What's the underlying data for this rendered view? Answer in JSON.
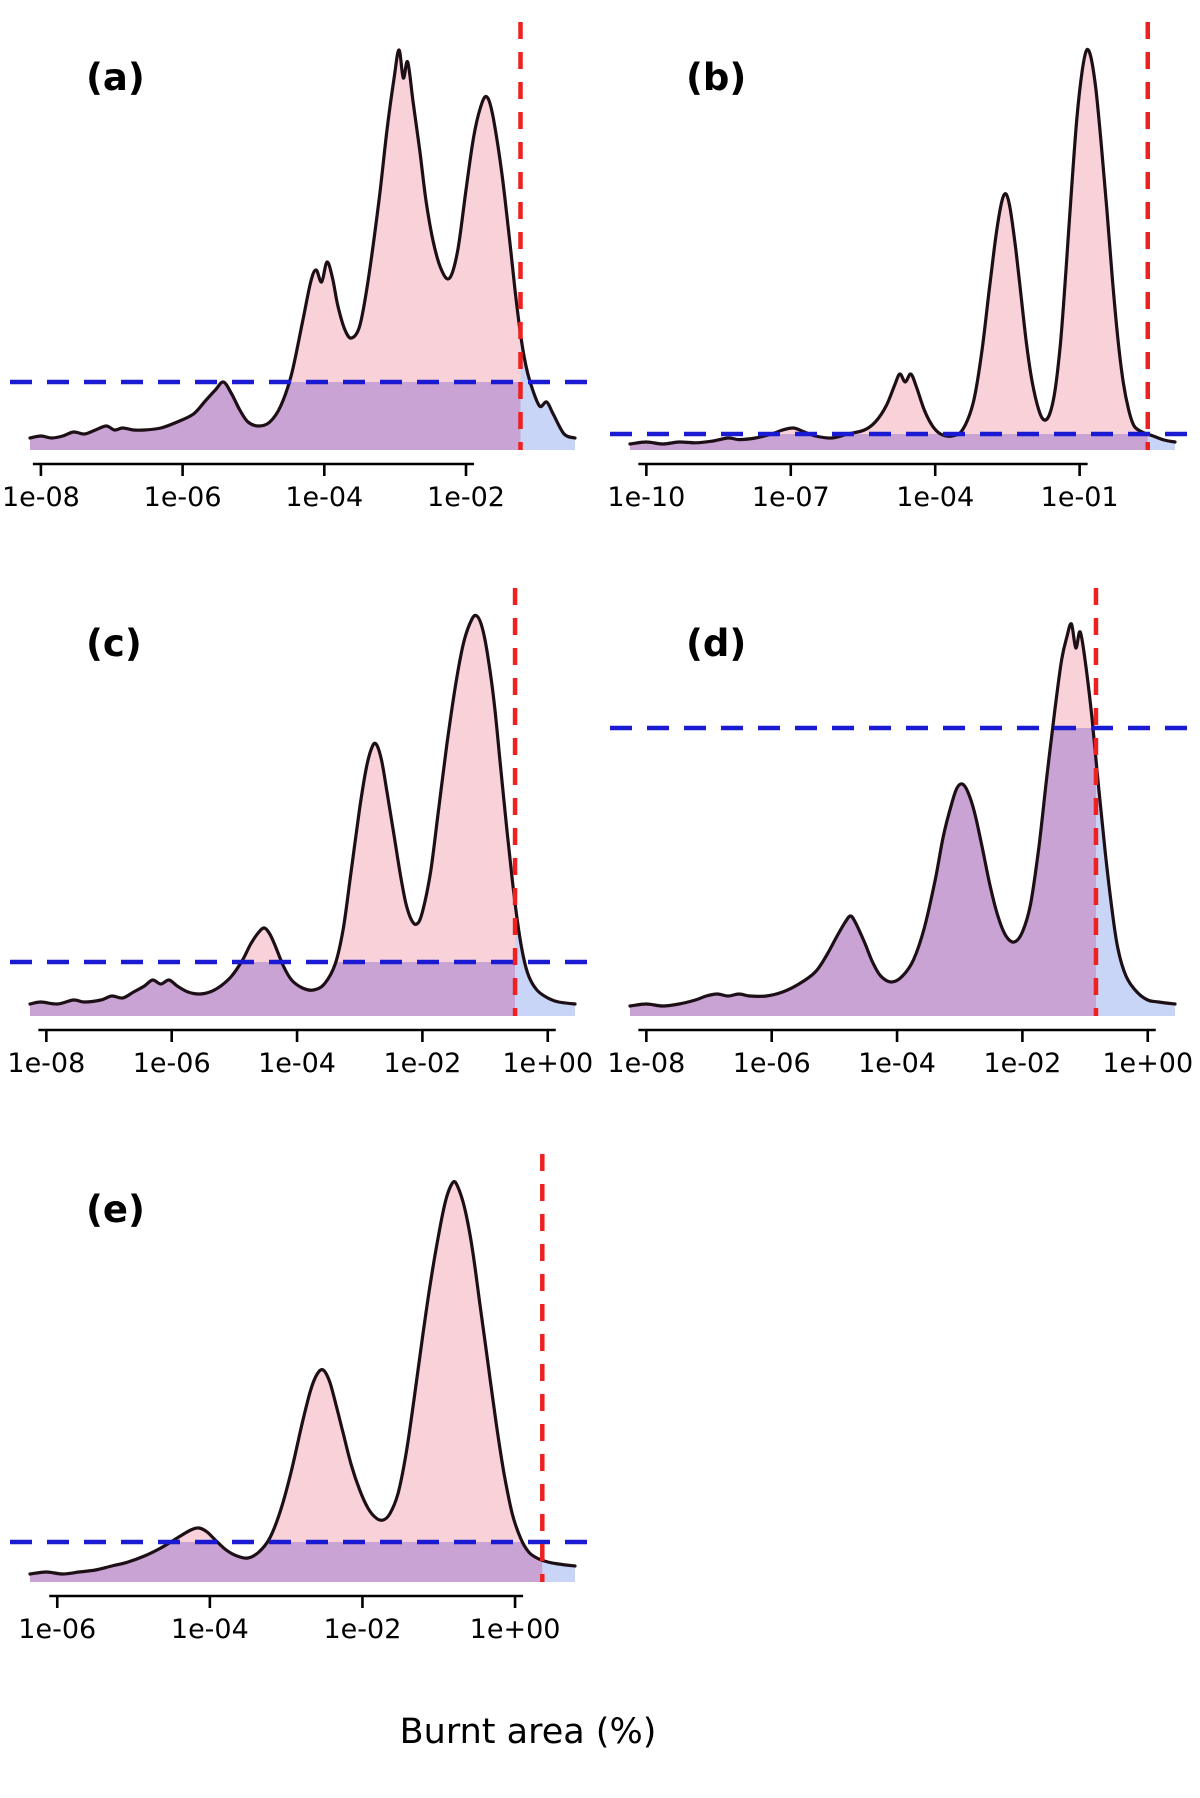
{
  "figure": {
    "xlabel": "Burnt area (%)",
    "colors": {
      "fill_pink": "#f9d2d9",
      "fill_overlap_purple": "#c9a3d3",
      "fill_beyond_blue": "#c8d5f7",
      "curve": "#1d0f16",
      "blue_line": "#1a1ad2",
      "red_line": "#ee2020",
      "axis": "#000000"
    }
  },
  "chart_data": [
    {
      "panel": "(a)",
      "type": "area",
      "x_scale": "log10",
      "x_ticks": [
        {
          "pos": 0.02,
          "label": "1e-08"
        },
        {
          "pos": 0.28,
          "label": "1e-06"
        },
        {
          "pos": 0.54,
          "label": "1e-04"
        },
        {
          "pos": 0.8,
          "label": "1e-02"
        }
      ],
      "blue_hline_frac": 0.17,
      "red_vline_frac": 0.9,
      "red_vline_value_pct": "~0.06",
      "curve_points": [
        [
          0,
          0.03
        ],
        [
          0.02,
          0.035
        ],
        [
          0.04,
          0.03
        ],
        [
          0.06,
          0.035
        ],
        [
          0.08,
          0.045
        ],
        [
          0.1,
          0.04
        ],
        [
          0.12,
          0.05
        ],
        [
          0.14,
          0.06
        ],
        [
          0.155,
          0.05
        ],
        [
          0.17,
          0.055
        ],
        [
          0.19,
          0.05
        ],
        [
          0.21,
          0.05
        ],
        [
          0.24,
          0.055
        ],
        [
          0.27,
          0.07
        ],
        [
          0.3,
          0.09
        ],
        [
          0.32,
          0.12
        ],
        [
          0.34,
          0.15
        ],
        [
          0.355,
          0.17
        ],
        [
          0.37,
          0.14
        ],
        [
          0.385,
          0.1
        ],
        [
          0.4,
          0.07
        ],
        [
          0.42,
          0.06
        ],
        [
          0.44,
          0.07
        ],
        [
          0.46,
          0.11
        ],
        [
          0.48,
          0.19
        ],
        [
          0.5,
          0.32
        ],
        [
          0.515,
          0.42
        ],
        [
          0.525,
          0.45
        ],
        [
          0.535,
          0.42
        ],
        [
          0.545,
          0.47
        ],
        [
          0.555,
          0.43
        ],
        [
          0.565,
          0.36
        ],
        [
          0.578,
          0.3
        ],
        [
          0.59,
          0.28
        ],
        [
          0.605,
          0.31
        ],
        [
          0.62,
          0.42
        ],
        [
          0.64,
          0.62
        ],
        [
          0.655,
          0.8
        ],
        [
          0.668,
          0.93
        ],
        [
          0.677,
          1.0
        ],
        [
          0.685,
          0.93
        ],
        [
          0.693,
          0.97
        ],
        [
          0.703,
          0.87
        ],
        [
          0.715,
          0.75
        ],
        [
          0.727,
          0.62
        ],
        [
          0.74,
          0.52
        ],
        [
          0.755,
          0.45
        ],
        [
          0.77,
          0.43
        ],
        [
          0.785,
          0.5
        ],
        [
          0.8,
          0.65
        ],
        [
          0.815,
          0.79
        ],
        [
          0.83,
          0.87
        ],
        [
          0.84,
          0.88
        ],
        [
          0.85,
          0.83
        ],
        [
          0.865,
          0.7
        ],
        [
          0.878,
          0.55
        ],
        [
          0.89,
          0.4
        ],
        [
          0.9,
          0.29
        ],
        [
          0.91,
          0.21
        ],
        [
          0.92,
          0.16
        ],
        [
          0.935,
          0.11
        ],
        [
          0.948,
          0.12
        ],
        [
          0.96,
          0.09
        ],
        [
          0.98,
          0.04
        ],
        [
          1,
          0.03
        ]
      ]
    },
    {
      "panel": "(b)",
      "type": "area",
      "x_scale": "log10",
      "x_ticks": [
        {
          "pos": 0.03,
          "label": "1e-10"
        },
        {
          "pos": 0.295,
          "label": "1e-07"
        },
        {
          "pos": 0.56,
          "label": "1e-04"
        },
        {
          "pos": 0.825,
          "label": "1e-01"
        }
      ],
      "blue_hline_frac": 0.04,
      "red_vline_frac": 0.95,
      "red_vline_value_pct": "~2.5",
      "curve_points": [
        [
          0,
          0.015
        ],
        [
          0.03,
          0.02
        ],
        [
          0.06,
          0.015
        ],
        [
          0.09,
          0.02
        ],
        [
          0.12,
          0.018
        ],
        [
          0.15,
          0.022
        ],
        [
          0.18,
          0.03
        ],
        [
          0.2,
          0.026
        ],
        [
          0.23,
          0.03
        ],
        [
          0.26,
          0.04
        ],
        [
          0.28,
          0.05
        ],
        [
          0.3,
          0.055
        ],
        [
          0.32,
          0.045
        ],
        [
          0.34,
          0.035
        ],
        [
          0.37,
          0.03
        ],
        [
          0.4,
          0.04
        ],
        [
          0.43,
          0.05
        ],
        [
          0.45,
          0.07
        ],
        [
          0.47,
          0.11
        ],
        [
          0.485,
          0.16
        ],
        [
          0.495,
          0.19
        ],
        [
          0.505,
          0.17
        ],
        [
          0.515,
          0.19
        ],
        [
          0.525,
          0.16
        ],
        [
          0.54,
          0.1
        ],
        [
          0.555,
          0.06
        ],
        [
          0.57,
          0.04
        ],
        [
          0.59,
          0.035
        ],
        [
          0.61,
          0.05
        ],
        [
          0.63,
          0.12
        ],
        [
          0.645,
          0.24
        ],
        [
          0.66,
          0.41
        ],
        [
          0.672,
          0.54
        ],
        [
          0.682,
          0.62
        ],
        [
          0.69,
          0.64
        ],
        [
          0.698,
          0.6
        ],
        [
          0.708,
          0.5
        ],
        [
          0.718,
          0.38
        ],
        [
          0.728,
          0.26
        ],
        [
          0.738,
          0.17
        ],
        [
          0.75,
          0.1
        ],
        [
          0.76,
          0.075
        ],
        [
          0.77,
          0.09
        ],
        [
          0.78,
          0.15
        ],
        [
          0.79,
          0.27
        ],
        [
          0.8,
          0.45
        ],
        [
          0.81,
          0.65
        ],
        [
          0.82,
          0.83
        ],
        [
          0.83,
          0.95
        ],
        [
          0.838,
          1.0
        ],
        [
          0.846,
          0.98
        ],
        [
          0.855,
          0.9
        ],
        [
          0.865,
          0.76
        ],
        [
          0.875,
          0.6
        ],
        [
          0.885,
          0.43
        ],
        [
          0.895,
          0.28
        ],
        [
          0.905,
          0.17
        ],
        [
          0.915,
          0.1
        ],
        [
          0.925,
          0.06
        ],
        [
          0.94,
          0.045
        ],
        [
          0.96,
          0.035
        ],
        [
          0.98,
          0.025
        ],
        [
          1,
          0.02
        ]
      ]
    },
    {
      "panel": "(c)",
      "type": "area",
      "x_scale": "log10",
      "x_ticks": [
        {
          "pos": 0.03,
          "label": "1e-08"
        },
        {
          "pos": 0.26,
          "label": "1e-06"
        },
        {
          "pos": 0.49,
          "label": "1e-04"
        },
        {
          "pos": 0.72,
          "label": "1e-02"
        },
        {
          "pos": 0.95,
          "label": "1e+00"
        }
      ],
      "blue_hline_frac": 0.135,
      "red_vline_frac": 0.89,
      "red_vline_value_pct": "~0.3",
      "curve_points": [
        [
          0,
          0.03
        ],
        [
          0.02,
          0.035
        ],
        [
          0.05,
          0.03
        ],
        [
          0.08,
          0.04
        ],
        [
          0.1,
          0.035
        ],
        [
          0.13,
          0.04
        ],
        [
          0.15,
          0.05
        ],
        [
          0.17,
          0.045
        ],
        [
          0.19,
          0.06
        ],
        [
          0.21,
          0.075
        ],
        [
          0.225,
          0.09
        ],
        [
          0.24,
          0.08
        ],
        [
          0.255,
          0.09
        ],
        [
          0.27,
          0.075
        ],
        [
          0.29,
          0.06
        ],
        [
          0.31,
          0.055
        ],
        [
          0.33,
          0.06
        ],
        [
          0.35,
          0.075
        ],
        [
          0.37,
          0.1
        ],
        [
          0.39,
          0.14
        ],
        [
          0.405,
          0.18
        ],
        [
          0.42,
          0.21
        ],
        [
          0.43,
          0.22
        ],
        [
          0.44,
          0.205
        ],
        [
          0.45,
          0.175
        ],
        [
          0.465,
          0.125
        ],
        [
          0.48,
          0.09
        ],
        [
          0.5,
          0.07
        ],
        [
          0.52,
          0.065
        ],
        [
          0.54,
          0.08
        ],
        [
          0.56,
          0.13
        ],
        [
          0.575,
          0.22
        ],
        [
          0.59,
          0.37
        ],
        [
          0.605,
          0.52
        ],
        [
          0.617,
          0.62
        ],
        [
          0.627,
          0.67
        ],
        [
          0.635,
          0.68
        ],
        [
          0.645,
          0.64
        ],
        [
          0.655,
          0.56
        ],
        [
          0.667,
          0.46
        ],
        [
          0.68,
          0.35
        ],
        [
          0.69,
          0.28
        ],
        [
          0.7,
          0.24
        ],
        [
          0.71,
          0.23
        ],
        [
          0.72,
          0.26
        ],
        [
          0.735,
          0.36
        ],
        [
          0.75,
          0.52
        ],
        [
          0.765,
          0.68
        ],
        [
          0.78,
          0.82
        ],
        [
          0.795,
          0.93
        ],
        [
          0.81,
          0.99
        ],
        [
          0.82,
          1.0
        ],
        [
          0.83,
          0.97
        ],
        [
          0.84,
          0.9
        ],
        [
          0.852,
          0.78
        ],
        [
          0.863,
          0.63
        ],
        [
          0.874,
          0.48
        ],
        [
          0.885,
          0.34
        ],
        [
          0.895,
          0.23
        ],
        [
          0.905,
          0.15
        ],
        [
          0.915,
          0.1
        ],
        [
          0.93,
          0.065
        ],
        [
          0.95,
          0.045
        ],
        [
          0.97,
          0.035
        ],
        [
          1,
          0.03
        ]
      ]
    },
    {
      "panel": "(d)",
      "type": "area",
      "x_scale": "log10",
      "x_ticks": [
        {
          "pos": 0.03,
          "label": "1e-08"
        },
        {
          "pos": 0.26,
          "label": "1e-06"
        },
        {
          "pos": 0.49,
          "label": "1e-04"
        },
        {
          "pos": 0.72,
          "label": "1e-02"
        },
        {
          "pos": 0.95,
          "label": "1e+00"
        }
      ],
      "blue_hline_frac": 0.72,
      "red_vline_frac": 0.855,
      "red_vline_value_pct": "~0.15",
      "curve_points": [
        [
          0,
          0.025
        ],
        [
          0.03,
          0.03
        ],
        [
          0.06,
          0.025
        ],
        [
          0.09,
          0.03
        ],
        [
          0.12,
          0.04
        ],
        [
          0.14,
          0.05
        ],
        [
          0.16,
          0.055
        ],
        [
          0.18,
          0.05
        ],
        [
          0.2,
          0.055
        ],
        [
          0.22,
          0.05
        ],
        [
          0.25,
          0.05
        ],
        [
          0.28,
          0.06
        ],
        [
          0.31,
          0.08
        ],
        [
          0.34,
          0.11
        ],
        [
          0.36,
          0.15
        ],
        [
          0.38,
          0.2
        ],
        [
          0.395,
          0.235
        ],
        [
          0.405,
          0.25
        ],
        [
          0.415,
          0.23
        ],
        [
          0.43,
          0.185
        ],
        [
          0.445,
          0.135
        ],
        [
          0.46,
          0.1
        ],
        [
          0.48,
          0.085
        ],
        [
          0.5,
          0.1
        ],
        [
          0.52,
          0.14
        ],
        [
          0.54,
          0.22
        ],
        [
          0.56,
          0.34
        ],
        [
          0.575,
          0.45
        ],
        [
          0.59,
          0.53
        ],
        [
          0.6,
          0.57
        ],
        [
          0.61,
          0.58
        ],
        [
          0.62,
          0.56
        ],
        [
          0.632,
          0.51
        ],
        [
          0.645,
          0.43
        ],
        [
          0.66,
          0.33
        ],
        [
          0.675,
          0.25
        ],
        [
          0.69,
          0.2
        ],
        [
          0.705,
          0.185
        ],
        [
          0.72,
          0.21
        ],
        [
          0.735,
          0.28
        ],
        [
          0.75,
          0.42
        ],
        [
          0.765,
          0.6
        ],
        [
          0.78,
          0.77
        ],
        [
          0.792,
          0.89
        ],
        [
          0.802,
          0.95
        ],
        [
          0.81,
          0.98
        ],
        [
          0.818,
          0.92
        ],
        [
          0.826,
          0.96
        ],
        [
          0.836,
          0.88
        ],
        [
          0.848,
          0.74
        ],
        [
          0.86,
          0.57
        ],
        [
          0.872,
          0.41
        ],
        [
          0.884,
          0.27
        ],
        [
          0.895,
          0.17
        ],
        [
          0.91,
          0.1
        ],
        [
          0.93,
          0.06
        ],
        [
          0.95,
          0.04
        ],
        [
          0.97,
          0.035
        ],
        [
          1,
          0.03
        ]
      ]
    },
    {
      "panel": "(e)",
      "type": "area",
      "x_scale": "log10",
      "x_ticks": [
        {
          "pos": 0.05,
          "label": "1e-06"
        },
        {
          "pos": 0.33,
          "label": "1e-04"
        },
        {
          "pos": 0.61,
          "label": "1e-02"
        },
        {
          "pos": 0.89,
          "label": "1e+00"
        }
      ],
      "blue_hline_frac": 0.1,
      "red_vline_frac": 0.94,
      "red_vline_value_pct": "~2.3",
      "curve_points": [
        [
          0,
          0.02
        ],
        [
          0.03,
          0.025
        ],
        [
          0.06,
          0.02
        ],
        [
          0.09,
          0.025
        ],
        [
          0.12,
          0.03
        ],
        [
          0.15,
          0.04
        ],
        [
          0.18,
          0.05
        ],
        [
          0.21,
          0.065
        ],
        [
          0.24,
          0.085
        ],
        [
          0.27,
          0.11
        ],
        [
          0.295,
          0.13
        ],
        [
          0.31,
          0.135
        ],
        [
          0.325,
          0.125
        ],
        [
          0.34,
          0.105
        ],
        [
          0.36,
          0.08
        ],
        [
          0.38,
          0.065
        ],
        [
          0.4,
          0.06
        ],
        [
          0.42,
          0.075
        ],
        [
          0.44,
          0.11
        ],
        [
          0.46,
          0.18
        ],
        [
          0.48,
          0.28
        ],
        [
          0.5,
          0.4
        ],
        [
          0.515,
          0.48
        ],
        [
          0.527,
          0.52
        ],
        [
          0.538,
          0.53
        ],
        [
          0.55,
          0.5
        ],
        [
          0.562,
          0.44
        ],
        [
          0.575,
          0.37
        ],
        [
          0.59,
          0.29
        ],
        [
          0.605,
          0.23
        ],
        [
          0.62,
          0.185
        ],
        [
          0.635,
          0.16
        ],
        [
          0.648,
          0.155
        ],
        [
          0.66,
          0.17
        ],
        [
          0.675,
          0.22
        ],
        [
          0.69,
          0.32
        ],
        [
          0.705,
          0.46
        ],
        [
          0.72,
          0.61
        ],
        [
          0.735,
          0.75
        ],
        [
          0.75,
          0.87
        ],
        [
          0.762,
          0.95
        ],
        [
          0.772,
          0.99
        ],
        [
          0.78,
          1.0
        ],
        [
          0.79,
          0.97
        ],
        [
          0.8,
          0.92
        ],
        [
          0.812,
          0.83
        ],
        [
          0.825,
          0.7
        ],
        [
          0.84,
          0.55
        ],
        [
          0.855,
          0.4
        ],
        [
          0.87,
          0.27
        ],
        [
          0.885,
          0.17
        ],
        [
          0.9,
          0.11
        ],
        [
          0.915,
          0.075
        ],
        [
          0.93,
          0.06
        ],
        [
          0.95,
          0.05
        ],
        [
          0.97,
          0.045
        ],
        [
          1,
          0.04
        ]
      ]
    }
  ]
}
